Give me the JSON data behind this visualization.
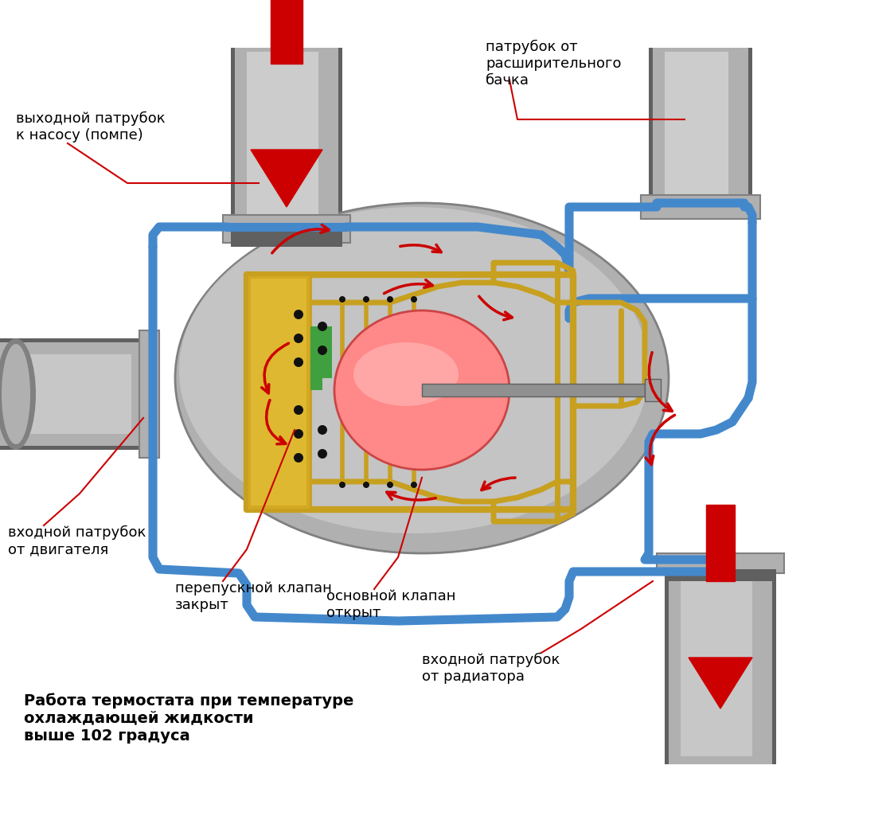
{
  "bg_color": "#ffffff",
  "body_color": "#b0b0b0",
  "body_dark": "#808080",
  "body_light": "#d8d8d8",
  "pipe_gray": "#a0a0a0",
  "pipe_dark": "#606060",
  "blue_color": "#4488cc",
  "gold_color": "#c8a020",
  "gold_light": "#e8c840",
  "red_arrow": "#cc0000",
  "red_fill": "#ff6060",
  "green_color": "#40a040",
  "black": "#000000",
  "white": "#ffffff",
  "label1_text": "выходной патрубок\nк насосу (помпе)",
  "label2_text": "патрубок от\nрасширительного\nбачка",
  "label3_text": "входной патрубок\nот двигателя",
  "label4_text": "перепускной клапан\nзакрыт",
  "label5_text": "основной клапан\nоткрыт",
  "label6_text": "входной патрубок\nот радиатора",
  "caption_text": "Работа термостата при температуре\nохлаждающей жидкости\nвыше 102 градуса"
}
